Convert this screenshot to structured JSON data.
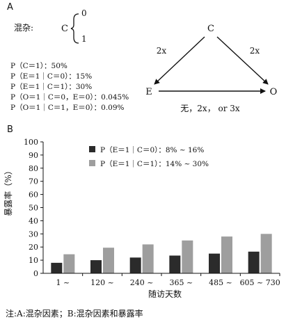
{
  "panel_a": {
    "label": "A",
    "confounder_label": "混杂:",
    "confounder_var": "C",
    "confounder_values": [
      "0",
      "1"
    ],
    "probabilities": [
      "P（C＝1）：50%",
      "P（E＝1｜C＝0）：15%",
      "P（E＝1｜C＝1）：30%",
      "P（O＝1｜C＝0，E＝0）：0.045%",
      "P（O＝1｜C＝1，E＝0）：0.09%"
    ],
    "dag": {
      "nodes": {
        "c": "C",
        "e": "E",
        "o": "O"
      },
      "edge_c_e": "2x",
      "edge_c_o": "2x",
      "edge_e_o": "无，2x，  or 3x"
    }
  },
  "panel_b": {
    "label": "B",
    "legend": [
      "P（E＝1｜C＝0）：8% ~ 16%",
      "P（E＝1｜C＝1）：14% ~ 30%"
    ]
  },
  "chart_data": {
    "type": "bar",
    "xlabel": "随访天数",
    "ylabel": "暴露率（%）",
    "ylim": [
      0,
      100
    ],
    "yticks": [
      0,
      10,
      20,
      30,
      40,
      50,
      60,
      70,
      80,
      90,
      100
    ],
    "grid": false,
    "legend_position": "top-left",
    "categories": [
      "1 ~",
      "120 ~",
      "240 ~",
      "365 ~",
      "485 ~",
      "605 ~ 730"
    ],
    "series": [
      {
        "name": "P（E＝1｜C＝0）：8% ~ 16%",
        "color": "#2b2b2b",
        "values": [
          8,
          10,
          12,
          13.5,
          15,
          16.5
        ]
      },
      {
        "name": "P（E＝1｜C＝1）：14% ~ 30%",
        "color": "#9e9e9e",
        "values": [
          14.5,
          19.5,
          22,
          25,
          28,
          30
        ]
      }
    ]
  },
  "note": "注:A:混杂因素；B:混杂因素和暴露率"
}
